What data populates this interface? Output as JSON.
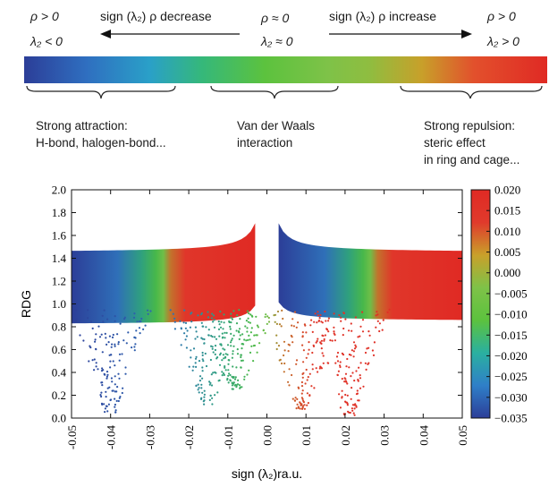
{
  "top": {
    "left_rho": "ρ > 0",
    "left_lambda": "λ₂ < 0",
    "mid_rho": "ρ ≈ 0",
    "mid_lambda": "λ₂ ≈ 0",
    "right_rho": "ρ > 0",
    "right_lambda": "λ₂ > 0",
    "decrease_label": "sign (λ₂) ρ decrease",
    "increase_label": "sign (λ₂) ρ increase"
  },
  "categories": {
    "attraction": [
      "Strong attraction:",
      "H-bond, halogen-bond..."
    ],
    "vdw": [
      "Van der Waals",
      "interaction"
    ],
    "repulsion": [
      "Strong repulsion:",
      "steric effect",
      "in ring and cage..."
    ]
  },
  "chart_data": {
    "type": "scatter",
    "xlabel": "sign (λ₂)ra.u.",
    "ylabel": "RDG",
    "xlim": [
      -0.05,
      0.05
    ],
    "ylim": [
      0.0,
      2.0
    ],
    "xticks": [
      "-0.05",
      "-0.04",
      "-0.03",
      "-0.02",
      "-0.01",
      "0.00",
      "0.01",
      "0.02",
      "0.03",
      "0.04",
      "0.05"
    ],
    "yticks": [
      "0.0",
      "0.2",
      "0.4",
      "0.6",
      "0.8",
      "1.0",
      "1.2",
      "1.4",
      "1.6",
      "1.8",
      "2.0"
    ],
    "colorbar": {
      "ticks": [
        "0.020",
        "0.015",
        "0.010",
        "0.005",
        "0.000",
        "−0.005",
        "−0.010",
        "−0.015",
        "−0.020",
        "−0.025",
        "−0.030",
        "−0.035"
      ],
      "range": [
        -0.035,
        0.02
      ],
      "colors": [
        "#2c3e98",
        "#2f7fc8",
        "#2ab0a0",
        "#5cc23e",
        "#7ec248",
        "#c9a02a",
        "#e03a2c",
        "#e02a24"
      ]
    },
    "bands": [
      {
        "x_from": -0.05,
        "x_to": -0.003,
        "rdg_low_at_edge": 0.82,
        "rdg_high_at_edge": 1.45
      },
      {
        "x_from": 0.003,
        "x_to": 0.05,
        "rdg_low_at_edge": 0.85,
        "rdg_high_at_edge": 1.45
      }
    ],
    "spikes": [
      {
        "x_center": -0.04,
        "rdg_min": 0.05
      },
      {
        "x_center": -0.015,
        "rdg_min": 0.12
      },
      {
        "x_center": -0.008,
        "rdg_min": 0.25
      },
      {
        "x_center": 0.009,
        "rdg_min": 0.08
      },
      {
        "x_center": 0.021,
        "rdg_min": 0.02
      }
    ]
  }
}
